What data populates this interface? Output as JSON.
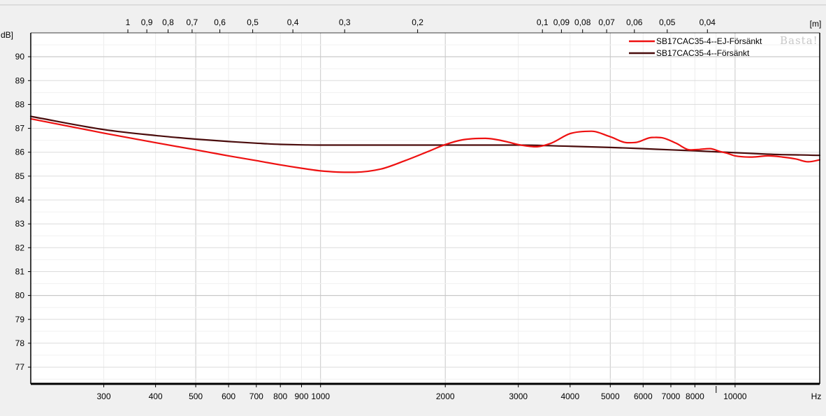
{
  "chart_data": {
    "type": "line",
    "x_scale": "log",
    "xlim": [
      200,
      16000
    ],
    "ylim": [
      76.3,
      91.0
    ],
    "grid": true,
    "legend_position": "top-right",
    "y_unit_label": "dB]",
    "x_unit_label": "Hz",
    "top_axis_unit_label": "[m]",
    "watermark": "Basta!",
    "x_ticks": [
      {
        "value": 300,
        "label": "300"
      },
      {
        "value": 400,
        "label": "400"
      },
      {
        "value": 500,
        "label": "500"
      },
      {
        "value": 600,
        "label": "600"
      },
      {
        "value": 700,
        "label": "700"
      },
      {
        "value": 800,
        "label": "800"
      },
      {
        "value": 900,
        "label": "900"
      },
      {
        "value": 1000,
        "label": "1000"
      },
      {
        "value": 2000,
        "label": "2000"
      },
      {
        "value": 3000,
        "label": "3000"
      },
      {
        "value": 4000,
        "label": "4000"
      },
      {
        "value": 5000,
        "label": "5000"
      },
      {
        "value": 6000,
        "label": "6000"
      },
      {
        "value": 7000,
        "label": "7000"
      },
      {
        "value": 8000,
        "label": "8000"
      },
      {
        "value": 10000,
        "label": "10000"
      }
    ],
    "x_minor_ticks": [
      9000
    ],
    "y_ticks": [
      77,
      78,
      79,
      80,
      81,
      82,
      83,
      84,
      85,
      86,
      87,
      88,
      89,
      90
    ],
    "top_ticks": [
      {
        "value": 1,
        "label": "1"
      },
      {
        "value": 0.9,
        "label": "0,9"
      },
      {
        "value": 0.8,
        "label": "0,8"
      },
      {
        "value": 0.7,
        "label": "0,7"
      },
      {
        "value": 0.6,
        "label": "0,6"
      },
      {
        "value": 0.5,
        "label": "0,5"
      },
      {
        "value": 0.4,
        "label": "0,4"
      },
      {
        "value": 0.3,
        "label": "0,3"
      },
      {
        "value": 0.2,
        "label": "0,2"
      },
      {
        "value": 0.1,
        "label": "0,1"
      },
      {
        "value": 0.09,
        "label": "0,09"
      },
      {
        "value": 0.08,
        "label": "0,08"
      },
      {
        "value": 0.07,
        "label": "0,07"
      },
      {
        "value": 0.06,
        "label": "0,06"
      },
      {
        "value": 0.05,
        "label": "0,05"
      },
      {
        "value": 0.04,
        "label": "0,04"
      }
    ],
    "series": [
      {
        "name": "SB17CAC35-4--EJ-Försänkt",
        "color": "#ee1111",
        "x": [
          200,
          300,
          400,
          500,
          600,
          700,
          800,
          900,
          1000,
          1100,
          1200,
          1400,
          1600,
          1800,
          2000,
          2200,
          2500,
          2800,
          3000,
          3300,
          3600,
          4000,
          4500,
          5000,
          5500,
          5800,
          6300,
          6700,
          7200,
          7800,
          8200,
          8700,
          9200,
          9600,
          10000,
          11000,
          12000,
          13000,
          14000,
          15000,
          16000
        ],
        "y": [
          87.4,
          86.8,
          86.4,
          86.1,
          85.85,
          85.65,
          85.47,
          85.33,
          85.22,
          85.17,
          85.16,
          85.3,
          85.65,
          86.0,
          86.32,
          86.52,
          86.58,
          86.45,
          86.32,
          86.23,
          86.38,
          86.78,
          86.88,
          86.65,
          86.4,
          86.42,
          86.62,
          86.6,
          86.38,
          86.1,
          86.12,
          86.15,
          86.03,
          85.95,
          85.85,
          85.8,
          85.85,
          85.8,
          85.72,
          85.6,
          85.68
        ]
      },
      {
        "name": "SB17CAC35-4--Försänkt",
        "color": "#4a0c0c",
        "x": [
          200,
          300,
          400,
          500,
          600,
          700,
          800,
          900,
          1000,
          1500,
          2000,
          2500,
          3000,
          4000,
          5000,
          6000,
          7000,
          8000,
          9000,
          10000,
          11000,
          12000,
          13000,
          14000,
          15000,
          16000
        ],
        "y": [
          87.5,
          86.95,
          86.7,
          86.55,
          86.45,
          86.38,
          86.33,
          86.31,
          86.3,
          86.3,
          86.3,
          86.3,
          86.3,
          86.25,
          86.2,
          86.15,
          86.1,
          86.06,
          86.02,
          85.98,
          85.95,
          85.92,
          85.9,
          85.89,
          85.88,
          85.87
        ]
      }
    ]
  }
}
